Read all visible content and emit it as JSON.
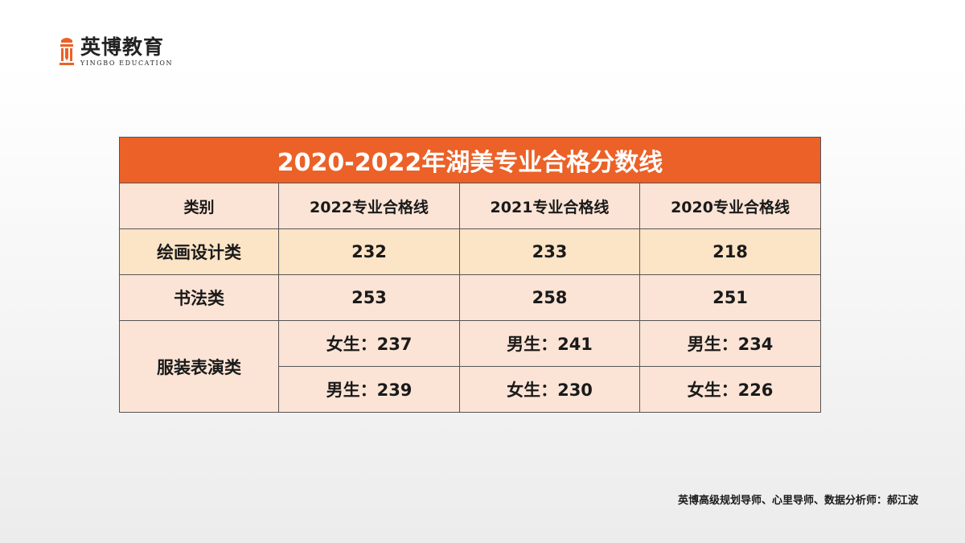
{
  "brand": {
    "name_cn": "英博教育",
    "name_en": "YINGBO EDUCATION",
    "accent_color": "#eb6127"
  },
  "table": {
    "title": "2020-2022年湖美专业合格分数线",
    "headers": [
      "类别",
      "2022专业合格线",
      "2021专业合格线",
      "2020专业合格线"
    ],
    "rows": [
      {
        "category": "绘画设计类",
        "values": [
          "232",
          "233",
          "218"
        ]
      },
      {
        "category": "书法类",
        "values": [
          "253",
          "258",
          "251"
        ]
      },
      {
        "category": "服装表演类",
        "sub_rows": [
          [
            "女生：237",
            "男生：241",
            "男生：234"
          ],
          [
            "男生：239",
            "女生：230",
            "女生：226"
          ]
        ]
      }
    ]
  },
  "footer": {
    "credit": "英博高级规划导师、心里导师、数据分析师：郝江波"
  }
}
